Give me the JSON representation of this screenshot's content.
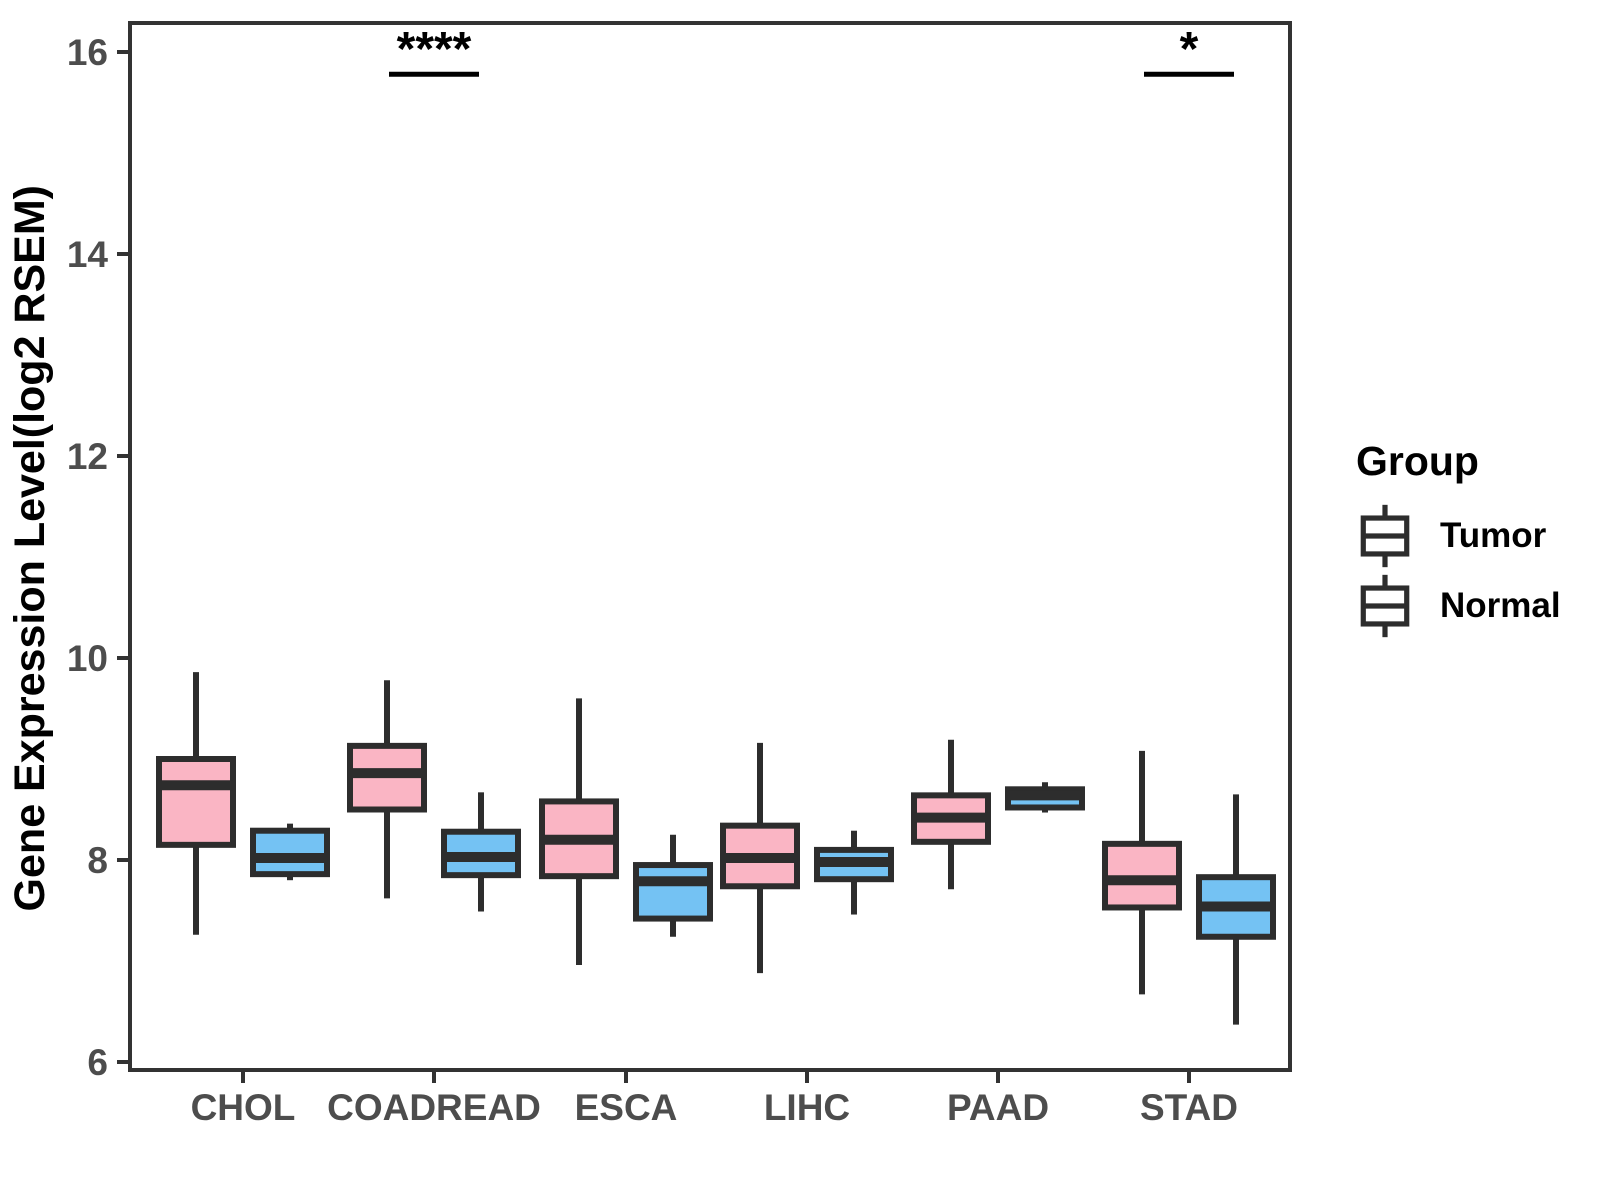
{
  "figure": {
    "background": "#ffffff"
  },
  "chart_data": {
    "type": "boxplot",
    "title": "",
    "xlabel": "",
    "ylabel": "Gene Expression Level(log2 RSEM)",
    "ylim": [
      5.9,
      16.3
    ],
    "yticks": [
      6,
      8,
      10,
      12,
      14,
      16
    ],
    "grid": "off",
    "categories": [
      "CHOL",
      "COADREAD",
      "ESCA",
      "LIHC",
      "PAAD",
      "STAD"
    ],
    "legend": {
      "title": "Group",
      "position": "right"
    },
    "colors": {
      "box_stroke": "#2d2d2d",
      "axis_stroke": "#333333",
      "tick_label": "#4d4d4d",
      "annotation": "#000000"
    },
    "series": [
      {
        "name": "Tumor",
        "color": "#fab5c4",
        "boxes": [
          {
            "category": "CHOL",
            "min": 7.26,
            "q1": 8.15,
            "median": 8.74,
            "q3": 9.0,
            "max": 9.86
          },
          {
            "category": "COADREAD",
            "min": 7.62,
            "q1": 8.5,
            "median": 8.86,
            "q3": 9.13,
            "max": 9.78
          },
          {
            "category": "ESCA",
            "min": 6.96,
            "q1": 7.84,
            "median": 8.2,
            "q3": 8.58,
            "max": 9.6
          },
          {
            "category": "LIHC",
            "min": 6.88,
            "q1": 7.74,
            "median": 8.02,
            "q3": 8.34,
            "max": 9.16
          },
          {
            "category": "PAAD",
            "min": 7.71,
            "q1": 8.18,
            "median": 8.42,
            "q3": 8.64,
            "max": 9.19
          },
          {
            "category": "STAD",
            "min": 6.67,
            "q1": 7.53,
            "median": 7.8,
            "q3": 8.16,
            "max": 9.08
          }
        ]
      },
      {
        "name": "Normal",
        "color": "#74c2f3",
        "boxes": [
          {
            "category": "CHOL",
            "min": 7.8,
            "q1": 7.86,
            "median": 8.02,
            "q3": 8.29,
            "max": 8.36
          },
          {
            "category": "COADREAD",
            "min": 7.49,
            "q1": 7.85,
            "median": 8.03,
            "q3": 8.28,
            "max": 8.67
          },
          {
            "category": "ESCA",
            "min": 7.24,
            "q1": 7.42,
            "median": 7.79,
            "q3": 7.95,
            "max": 8.25
          },
          {
            "category": "LIHC",
            "min": 7.46,
            "q1": 7.81,
            "median": 7.98,
            "q3": 8.1,
            "max": 8.29
          },
          {
            "category": "PAAD",
            "min": 8.47,
            "q1": 8.52,
            "median": 8.64,
            "q3": 8.7,
            "max": 8.77
          },
          {
            "category": "STAD",
            "min": 6.37,
            "q1": 7.24,
            "median": 7.54,
            "q3": 7.83,
            "max": 8.65
          }
        ]
      }
    ],
    "annotations": [
      {
        "category_index": 1,
        "label": "****",
        "y": 15.78
      },
      {
        "category_index": 5,
        "label": "*",
        "y": 15.78
      }
    ]
  }
}
